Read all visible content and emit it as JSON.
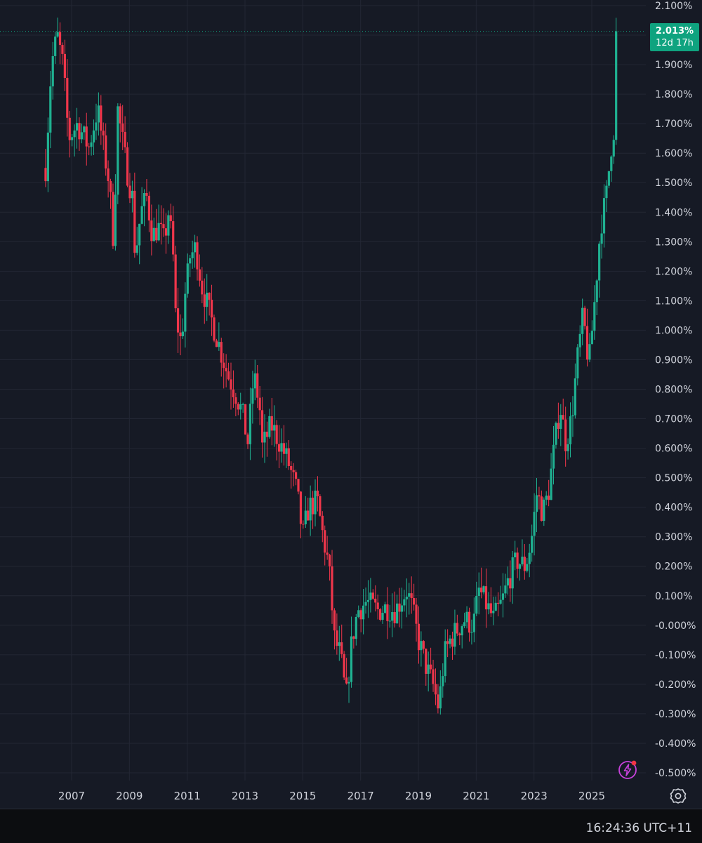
{
  "theme": {
    "background": "#161a25",
    "grid": "#232734",
    "up_color": "#1fb191",
    "down_color": "#f0364b",
    "text": "#d1d4dc",
    "last_price_color": "#0fa37f",
    "flash_icon_color": "#c742db"
  },
  "last_price": {
    "value": "2.013%",
    "countdown": "12d 17h",
    "y": 2.013
  },
  "status_bar": {
    "clock": "16:24:36 UTC+11"
  },
  "icons": {
    "flash": "lightning-icon",
    "settings": "gear-icon"
  },
  "chart_data": {
    "type": "candlestick",
    "y_unit": "%",
    "ylim": [
      -0.5,
      2.1
    ],
    "y_ticks": [
      2.1,
      2.0,
      1.9,
      1.8,
      1.7,
      1.6,
      1.5,
      1.4,
      1.3,
      1.2,
      1.1,
      1.0,
      0.9,
      0.8,
      0.7,
      0.6,
      0.5,
      0.4,
      0.3,
      0.2,
      0.1,
      0.0,
      -0.1,
      -0.2,
      -0.3,
      -0.4,
      -0.5
    ],
    "y_tick_labels": [
      "2.100%",
      "2.000%",
      "1.900%",
      "1.800%",
      "1.700%",
      "1.600%",
      "1.500%",
      "1.400%",
      "1.300%",
      "1.200%",
      "1.100%",
      "1.000%",
      "0.900%",
      "0.800%",
      "0.700%",
      "0.600%",
      "0.500%",
      "0.400%",
      "0.300%",
      "0.200%",
      "0.100%",
      "-0.000%",
      "-0.100%",
      "-0.200%",
      "-0.300%",
      "-0.400%",
      "-0.500%"
    ],
    "xlim": [
      2005.6,
      2026.0
    ],
    "x_ticks": [
      2007,
      2009,
      2011,
      2013,
      2015,
      2017,
      2019,
      2021,
      2023,
      2025
    ],
    "x_tick_labels": [
      "2007",
      "2009",
      "2011",
      "2013",
      "2015",
      "2017",
      "2019",
      "2021",
      "2023",
      "2025"
    ],
    "grid": true,
    "series_path": [
      [
        2006.1,
        1.55
      ],
      [
        2006.3,
        1.9
      ],
      [
        2006.5,
        2.0
      ],
      [
        2006.7,
        1.9
      ],
      [
        2006.9,
        1.65
      ],
      [
        2007.2,
        1.7
      ],
      [
        2007.6,
        1.62
      ],
      [
        2007.9,
        1.75
      ],
      [
        2008.1,
        1.62
      ],
      [
        2008.3,
        1.5
      ],
      [
        2008.45,
        1.3
      ],
      [
        2008.6,
        1.75
      ],
      [
        2008.7,
        1.68
      ],
      [
        2008.9,
        1.55
      ],
      [
        2009.1,
        1.45
      ],
      [
        2009.2,
        1.25
      ],
      [
        2009.4,
        1.4
      ],
      [
        2009.6,
        1.45
      ],
      [
        2009.8,
        1.32
      ],
      [
        2010.0,
        1.35
      ],
      [
        2010.2,
        1.3
      ],
      [
        2010.35,
        1.4
      ],
      [
        2010.5,
        1.28
      ],
      [
        2010.6,
        1.05
      ],
      [
        2010.8,
        0.95
      ],
      [
        2010.9,
        1.1
      ],
      [
        2011.1,
        1.25
      ],
      [
        2011.3,
        1.28
      ],
      [
        2011.5,
        1.15
      ],
      [
        2011.8,
        1.05
      ],
      [
        2012.1,
        0.95
      ],
      [
        2012.4,
        0.85
      ],
      [
        2012.7,
        0.78
      ],
      [
        2012.9,
        0.72
      ],
      [
        2013.1,
        0.62
      ],
      [
        2013.3,
        0.85
      ],
      [
        2013.5,
        0.75
      ],
      [
        2013.6,
        0.6
      ],
      [
        2013.9,
        0.68
      ],
      [
        2014.2,
        0.62
      ],
      [
        2014.5,
        0.55
      ],
      [
        2014.8,
        0.45
      ],
      [
        2015.0,
        0.3
      ],
      [
        2015.2,
        0.4
      ],
      [
        2015.5,
        0.42
      ],
      [
        2015.7,
        0.3
      ],
      [
        2015.9,
        0.2
      ],
      [
        2016.1,
        -0.05
      ],
      [
        2016.3,
        -0.1
      ],
      [
        2016.5,
        -0.25
      ],
      [
        2016.7,
        -0.05
      ],
      [
        2016.9,
        0.05
      ],
      [
        2017.2,
        0.08
      ],
      [
        2017.6,
        0.05
      ],
      [
        2017.9,
        0.06
      ],
      [
        2018.2,
        0.05
      ],
      [
        2018.6,
        0.12
      ],
      [
        2018.8,
        0.05
      ],
      [
        2019.0,
        -0.05
      ],
      [
        2019.3,
        -0.15
      ],
      [
        2019.5,
        -0.2
      ],
      [
        2019.7,
        -0.28
      ],
      [
        2019.9,
        -0.1
      ],
      [
        2020.1,
        -0.05
      ],
      [
        2020.3,
        -0.02
      ],
      [
        2020.6,
        0.02
      ],
      [
        2020.9,
        0.0
      ],
      [
        2021.1,
        0.12
      ],
      [
        2021.3,
        0.08
      ],
      [
        2021.6,
        0.02
      ],
      [
        2021.9,
        0.08
      ],
      [
        2022.1,
        0.15
      ],
      [
        2022.4,
        0.22
      ],
      [
        2022.7,
        0.2
      ],
      [
        2022.9,
        0.28
      ],
      [
        2023.1,
        0.45
      ],
      [
        2023.3,
        0.38
      ],
      [
        2023.5,
        0.45
      ],
      [
        2023.7,
        0.6
      ],
      [
        2023.9,
        0.75
      ],
      [
        2024.1,
        0.62
      ],
      [
        2024.3,
        0.7
      ],
      [
        2024.5,
        0.9
      ],
      [
        2024.7,
        1.05
      ],
      [
        2024.9,
        0.88
      ],
      [
        2025.1,
        1.1
      ],
      [
        2025.3,
        1.35
      ],
      [
        2025.5,
        1.45
      ],
      [
        2025.7,
        1.65
      ],
      [
        2025.8,
        1.7
      ],
      [
        2025.9,
        2.01
      ]
    ],
    "candle_interval_years": 0.0833
  }
}
